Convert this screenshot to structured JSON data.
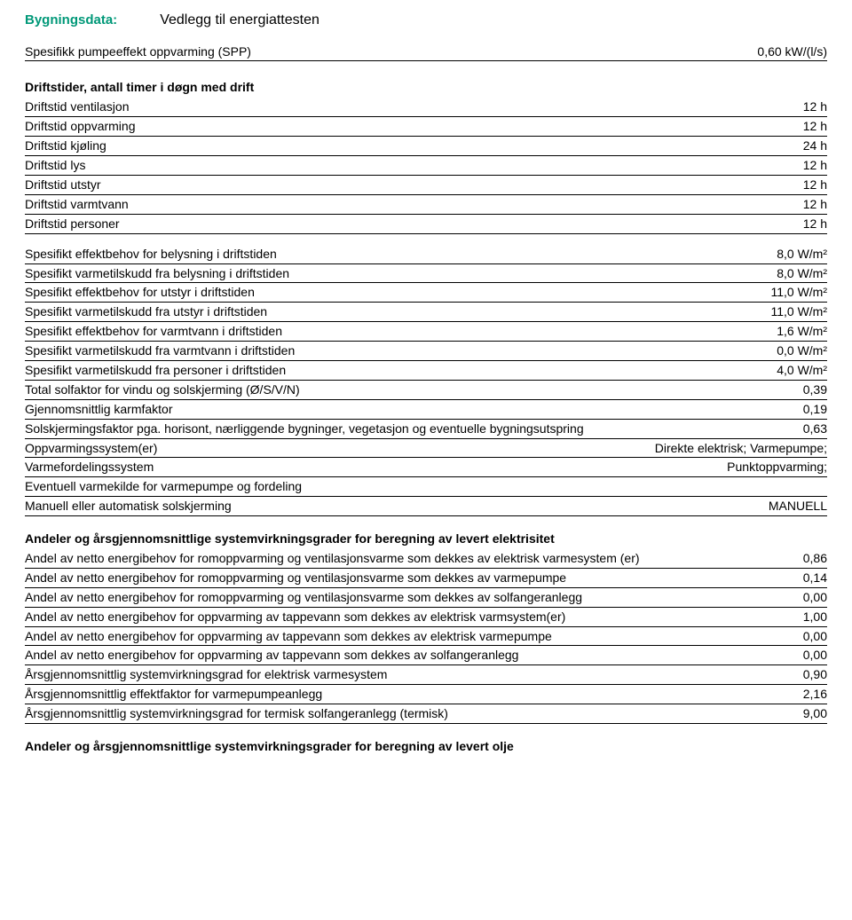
{
  "header": {
    "label": "Bygningsdata:",
    "title": "Vedlegg til energiattesten"
  },
  "top_row": {
    "label": "Spesifikk pumpeeffekt oppvarming (SPP)",
    "value": "0,60 kW/(l/s)"
  },
  "drift_section": {
    "heading": "Driftstider, antall timer i døgn med drift",
    "rows": [
      {
        "label": "Driftstid ventilasjon",
        "value": "12 h"
      },
      {
        "label": "Driftstid oppvarming",
        "value": "12 h"
      },
      {
        "label": "Driftstid kjøling",
        "value": "24 h"
      },
      {
        "label": "Driftstid lys",
        "value": "12 h"
      },
      {
        "label": "Driftstid utstyr",
        "value": "12 h"
      },
      {
        "label": "Driftstid varmtvann",
        "value": "12 h"
      },
      {
        "label": "Driftstid personer",
        "value": "12 h"
      }
    ]
  },
  "spesifikt_rows": [
    {
      "label": "Spesifikt effektbehov for belysning i driftstiden",
      "value": "8,0 W/m²"
    },
    {
      "label": "Spesifikt varmetilskudd fra belysning i driftstiden",
      "value": "8,0 W/m²"
    },
    {
      "label": "Spesifikt effektbehov for utstyr i driftstiden",
      "value": "11,0 W/m²"
    },
    {
      "label": "Spesifikt varmetilskudd fra utstyr i driftstiden",
      "value": "11,0 W/m²"
    },
    {
      "label": "Spesifikt effektbehov for varmtvann i driftstiden",
      "value": "1,6 W/m²"
    },
    {
      "label": "Spesifikt varmetilskudd fra varmtvann i driftstiden",
      "value": "0,0 W/m²"
    },
    {
      "label": "Spesifikt varmetilskudd fra personer i driftstiden",
      "value": "4,0 W/m²"
    },
    {
      "label": "Total solfaktor for vindu og solskjerming (Ø/S/V/N)",
      "value": "0,39"
    },
    {
      "label": "Gjennomsnittlig karmfaktor",
      "value": "0,19"
    },
    {
      "label": "Solskjermingsfaktor pga. horisont, nærliggende bygninger, vegetasjon og eventuelle bygningsutspring",
      "value": "0,63"
    },
    {
      "label": "Oppvarmingssystem(er)",
      "value": "Direkte elektrisk; Varmepumpe;"
    },
    {
      "label": "Varmefordelingssystem",
      "value": "Punktoppvarming;"
    },
    {
      "label": "Eventuell varmekilde for varmepumpe og fordeling",
      "value": ""
    },
    {
      "label": "Manuell eller automatisk solskjerming",
      "value": "MANUELL"
    }
  ],
  "andeler_elektrisitet": {
    "heading": "Andeler og årsgjennomsnittlige systemvirkningsgrader for beregning av levert elektrisitet",
    "rows": [
      {
        "label": "Andel av netto energibehov for romoppvarming og ventilasjonsvarme som dekkes av elektrisk varmesystem (er)",
        "value": "0,86"
      },
      {
        "label": "Andel av netto energibehov for romoppvarming og ventilasjonsvarme som dekkes av varmepumpe",
        "value": "0,14"
      },
      {
        "label": "Andel av netto energibehov for romoppvarming og ventilasjonsvarme som dekkes av solfangeranlegg",
        "value": "0,00"
      },
      {
        "label": "Andel av netto energibehov for oppvarming av tappevann som dekkes av elektrisk varmsystem(er)",
        "value": "1,00"
      },
      {
        "label": "Andel av netto energibehov for oppvarming av tappevann som dekkes av elektrisk varmepumpe",
        "value": "0,00"
      },
      {
        "label": "Andel av netto energibehov for oppvarming av tappevann som dekkes av solfangeranlegg",
        "value": "0,00"
      },
      {
        "label": "Årsgjennomsnittlig systemvirkningsgrad for elektrisk varmesystem",
        "value": "0,90"
      },
      {
        "label": "Årsgjennomsnittlig effektfaktor for varmepumpeanlegg",
        "value": "2,16"
      },
      {
        "label": "Årsgjennomsnittlig systemvirkningsgrad for termisk solfangeranlegg (termisk)",
        "value": "9,00"
      }
    ]
  },
  "andeler_olje": {
    "heading": "Andeler og årsgjennomsnittlige systemvirkningsgrader for beregning av levert olje"
  }
}
